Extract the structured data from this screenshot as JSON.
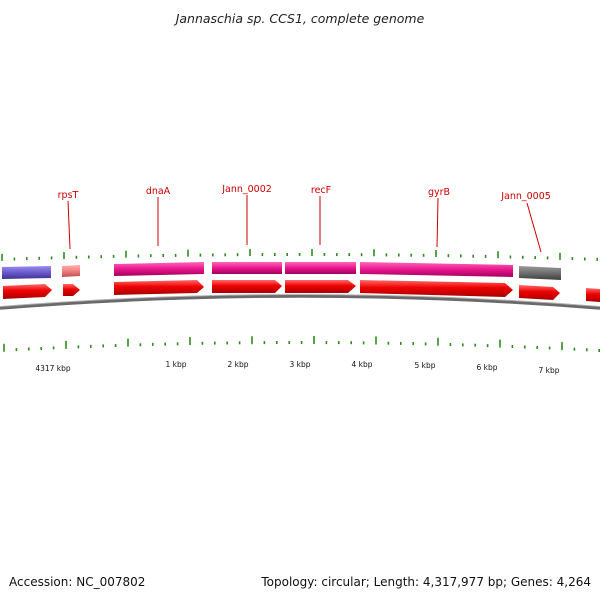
{
  "title": "Jannaschia sp. CCS1, complete genome",
  "footer": {
    "accession": "Accession: NC_007802",
    "summary": "Topology: circular; Length: 4,317,977 bp; Genes: 4,264"
  },
  "colors": {
    "gene_label": "#cc0000",
    "tick": "#2e8b1e",
    "backbone": "#7a7a7a",
    "forward_arrow": "#ee0000",
    "cds_magenta": "#e8168c",
    "cds_purple": "#6a5acd",
    "cds_salmon": "#f08080",
    "cds_gray": "#6e6e6e"
  },
  "gene_labels": [
    {
      "text": "rpsT"
    },
    {
      "text": "dnaA"
    },
    {
      "text": "Jann_0002"
    },
    {
      "text": "recF"
    },
    {
      "text": "gyrB"
    },
    {
      "text": "Jann_0005"
    }
  ],
  "kbp_labels": [
    {
      "text": "4317 kbp"
    },
    {
      "text": "1 kbp"
    },
    {
      "text": "2 kbp"
    },
    {
      "text": "3 kbp"
    },
    {
      "text": "4 kbp"
    },
    {
      "text": "5 kbp"
    },
    {
      "text": "6 kbp"
    },
    {
      "text": "7 kbp"
    }
  ],
  "cog_blocks": [
    {
      "color": "purple"
    },
    {
      "color": "salmon"
    },
    {
      "color": "magenta"
    },
    {
      "color": "magenta"
    },
    {
      "color": "magenta"
    },
    {
      "color": "magenta"
    },
    {
      "color": "gray"
    }
  ],
  "forward_genes": [
    {
      "name": "arrow-1"
    },
    {
      "name": "arrow-2"
    },
    {
      "name": "arrow-3"
    },
    {
      "name": "arrow-4"
    },
    {
      "name": "arrow-5"
    },
    {
      "name": "arrow-6"
    },
    {
      "name": "arrow-7"
    },
    {
      "name": "arrow-8"
    }
  ]
}
